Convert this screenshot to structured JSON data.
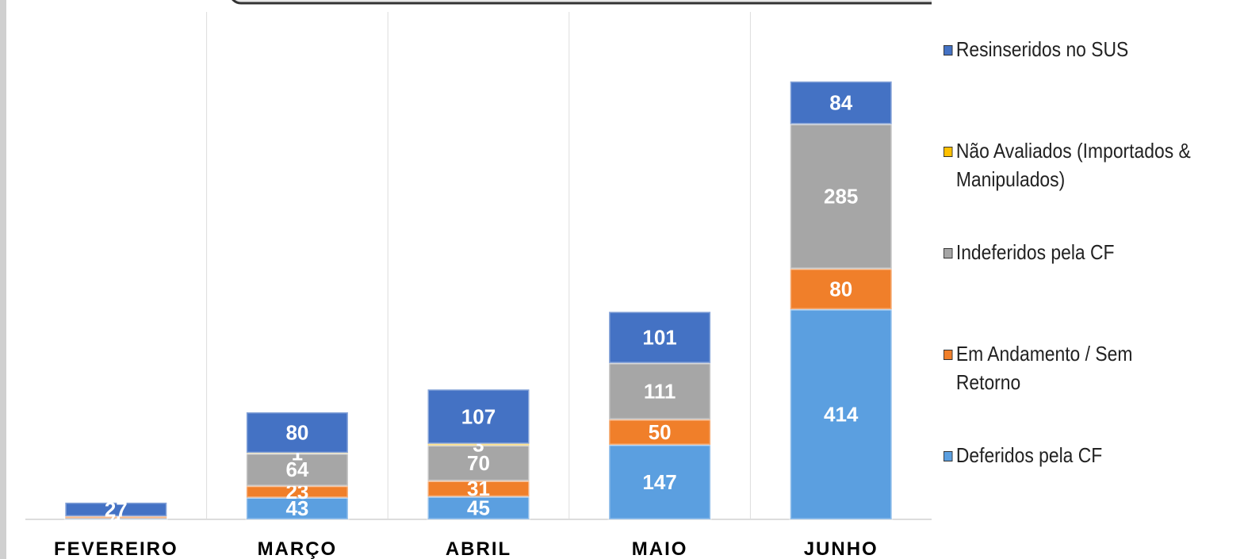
{
  "chart_data": {
    "type": "stacked_bar",
    "categories": [
      "FEVEREIRO",
      "MARÇO",
      "ABRIL",
      "MAIO",
      "JUNHO"
    ],
    "series": [
      {
        "name": "Deferidos pela CF",
        "color": "#5b9fe0",
        "values": [
          2,
          43,
          45,
          147,
          414
        ]
      },
      {
        "name": "Em Andamento / Sem Retorno",
        "color": "#f07f2a",
        "values": [
          4,
          23,
          31,
          50,
          80
        ]
      },
      {
        "name": "Indeferidos pela CF",
        "color": "#a6a6a6",
        "values": [
          null,
          64,
          70,
          111,
          285
        ]
      },
      {
        "name": "Não Avaliados (Importados & Manipulados)",
        "color": "#ffc000",
        "values": [
          null,
          1,
          3,
          null,
          null
        ]
      },
      {
        "name": "Resinseridos no SUS",
        "color": "#4472c4",
        "values": [
          27,
          80,
          107,
          101,
          84
        ]
      }
    ],
    "ylim": [
      0,
      1000
    ],
    "legend": "right"
  }
}
